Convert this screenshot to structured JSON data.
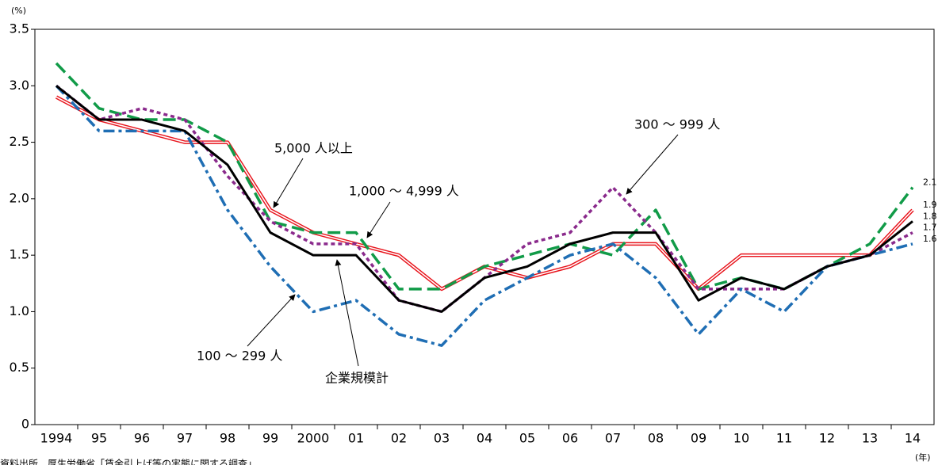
{
  "chart_data": {
    "type": "line",
    "y_axis_label": "(%)",
    "x_axis_label": "(年)",
    "note": "資料出所　厚生労働省「賃金引上げ等の実態に関する調査」",
    "categories": [
      "1994",
      "95",
      "96",
      "97",
      "98",
      "99",
      "2000",
      "01",
      "02",
      "03",
      "04",
      "05",
      "06",
      "07",
      "08",
      "09",
      "10",
      "11",
      "12",
      "13",
      "14"
    ],
    "ylim": [
      0,
      3.5
    ],
    "yticks": [
      0,
      0.5,
      {
        "value": 1,
        "label": "1.0"
      },
      1.5,
      {
        "value": 2,
        "label": "2.0"
      },
      2.5,
      {
        "value": 3,
        "label": "3.0"
      },
      3.5
    ],
    "grid": false,
    "series": [
      {
        "name": "5,000 人以上",
        "color": "#e8141c",
        "style": "double",
        "values": [
          2.9,
          2.7,
          2.6,
          2.5,
          2.5,
          1.9,
          1.7,
          1.6,
          1.5,
          1.2,
          1.4,
          1.3,
          1.4,
          1.6,
          1.6,
          1.2,
          1.5,
          1.5,
          1.5,
          1.5,
          1.9
        ]
      },
      {
        "name": "1,000 ～ 4,999 人",
        "color": "#119b48",
        "style": "dashed",
        "values": [
          3.2,
          2.8,
          2.7,
          2.7,
          2.5,
          1.8,
          1.7,
          1.7,
          1.2,
          1.2,
          1.4,
          1.5,
          1.6,
          1.5,
          1.9,
          1.2,
          1.3,
          1.2,
          1.4,
          1.6,
          2.1
        ]
      },
      {
        "name": "300 ～ 999 人",
        "color": "#8a2a8c",
        "style": "dotted",
        "values": [
          3.0,
          2.7,
          2.8,
          2.7,
          2.2,
          1.8,
          1.6,
          1.6,
          1.1,
          1.0,
          1.3,
          1.6,
          1.7,
          2.1,
          1.7,
          1.2,
          1.2,
          1.2,
          1.4,
          1.5,
          1.7
        ]
      },
      {
        "name": "100 ～ 299 人",
        "color": "#1f6eb4",
        "style": "dashdot",
        "values": [
          3.0,
          2.6,
          2.6,
          2.6,
          1.9,
          1.4,
          1.0,
          1.1,
          0.8,
          0.7,
          1.1,
          1.3,
          1.5,
          1.6,
          1.3,
          0.8,
          1.2,
          1.0,
          1.4,
          1.5,
          1.6
        ]
      },
      {
        "name": "企業規模計",
        "color": "#000000",
        "style": "solid",
        "values": [
          3.0,
          2.7,
          2.7,
          2.6,
          2.3,
          1.7,
          1.5,
          1.5,
          1.1,
          1.0,
          1.3,
          1.4,
          1.6,
          1.7,
          1.7,
          1.1,
          1.3,
          1.2,
          1.4,
          1.5,
          1.8
        ]
      }
    ]
  }
}
